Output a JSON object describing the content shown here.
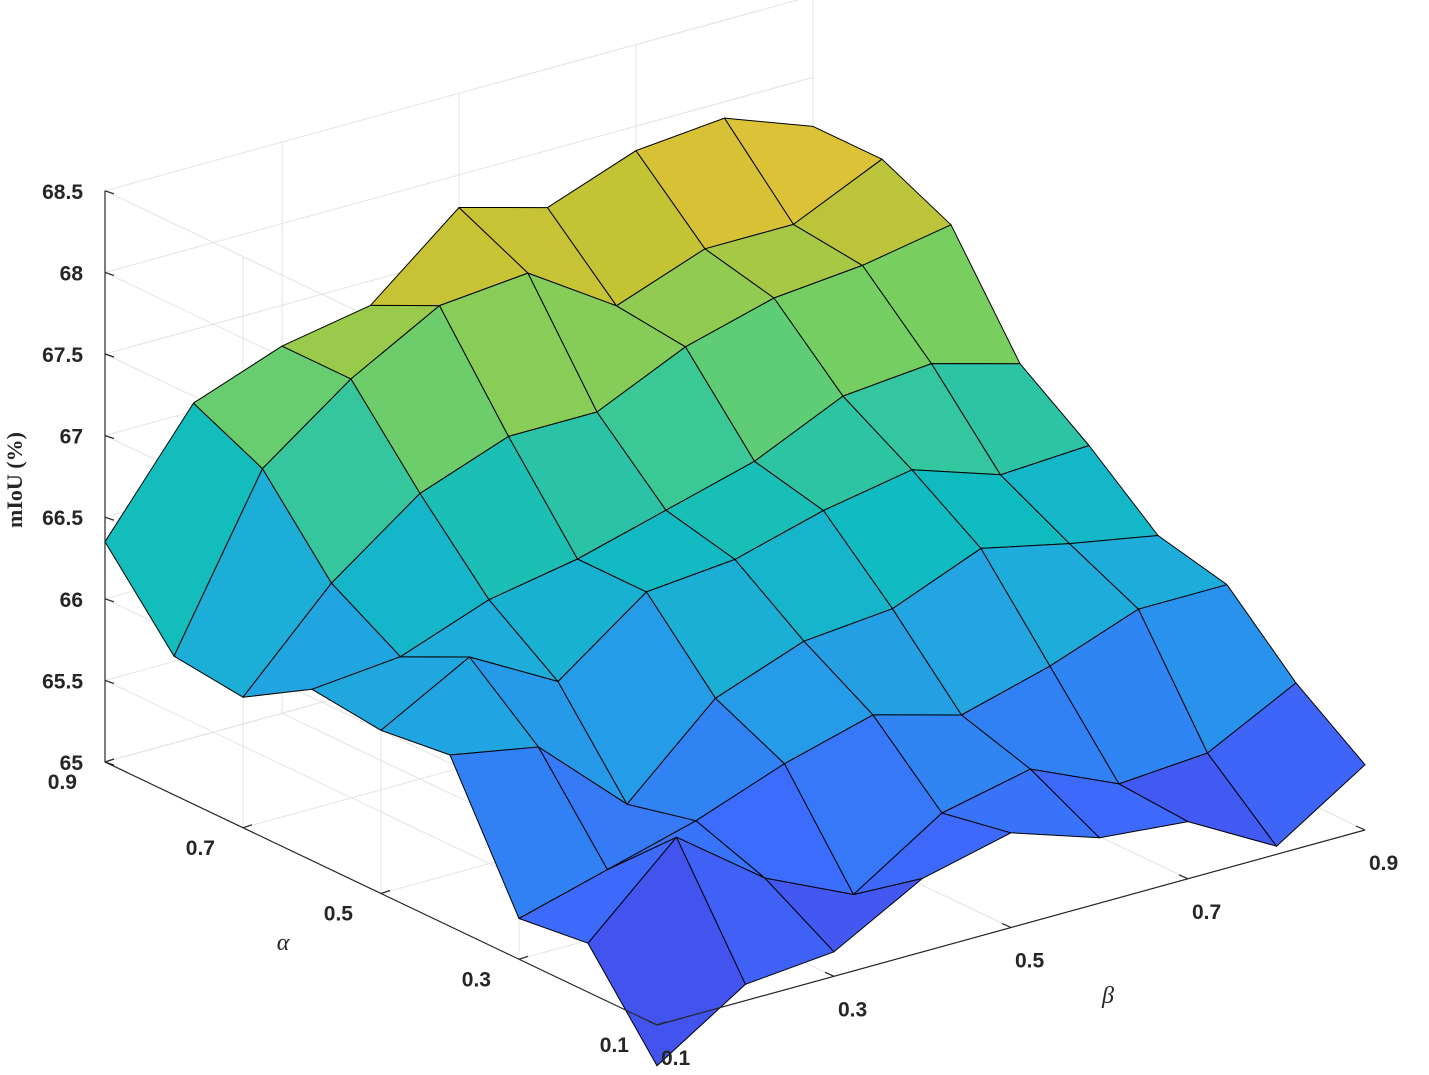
{
  "chart_data": {
    "type": "surface3d",
    "title": "",
    "xlabel": "β",
    "ylabel": "α",
    "zlabel": "mIoU (%)",
    "x": [
      0.1,
      0.2,
      0.3,
      0.4,
      0.5,
      0.6,
      0.7,
      0.8,
      0.9
    ],
    "y": [
      0.1,
      0.2,
      0.3,
      0.4,
      0.5,
      0.6,
      0.7,
      0.8,
      0.9
    ],
    "xticks": [
      "0.1",
      "0.3",
      "0.5",
      "0.7",
      "0.9"
    ],
    "yticks": [
      "0.1",
      "0.3",
      "0.5",
      "0.7",
      "0.9"
    ],
    "zticks": [
      "65",
      "65.5",
      "66",
      "66.5",
      "67",
      "67.5",
      "68",
      "68.5"
    ],
    "xlim": [
      0.1,
      0.9
    ],
    "ylim": [
      0.1,
      0.9
    ],
    "zlim": [
      65,
      68.5
    ],
    "grid": true,
    "colormap": [
      "#3e26a8",
      "#4743e5",
      "#3d6bfc",
      "#2a90ef",
      "#1fabdc",
      "#0fbcbf",
      "#3bc897",
      "#7acf5e",
      "#c4c334",
      "#ffc13a"
    ],
    "z": [
      [
        64.75,
        65.1,
        65.15,
        65.45,
        65.58,
        65.4,
        65.35,
        65.05,
        65.4
      ],
      [
        65.3,
        65.8,
        65.4,
        65.15,
        65.5,
        65.62,
        65.38,
        65.42,
        65.7
      ],
      [
        65.25,
        65.4,
        65.55,
        65.75,
        65.9,
        65.75,
        65.9,
        66.1,
        66.1
      ],
      [
        66.05,
        65.95,
        65.45,
        65.95,
        66.15,
        66.2,
        66.42,
        66.3,
        66.2
      ],
      [
        66.0,
        66.3,
        66.0,
        66.4,
        66.45,
        66.6,
        66.7,
        66.52,
        66.55
      ],
      [
        66.05,
        66.1,
        66.3,
        66.4,
        66.55,
        66.7,
        66.95,
        67.0,
        66.85
      ],
      [
        65.8,
        66.35,
        66.75,
        66.95,
        66.95,
        67.2,
        67.35,
        67.4,
        67.5
      ],
      [
        65.85,
        66.85,
        67.25,
        67.55,
        67.6,
        67.25,
        67.45,
        67.45,
        67.7
      ],
      [
        66.35,
        67.05,
        67.25,
        67.35,
        67.8,
        67.65,
        67.85,
        67.9,
        67.7
      ]
    ]
  }
}
